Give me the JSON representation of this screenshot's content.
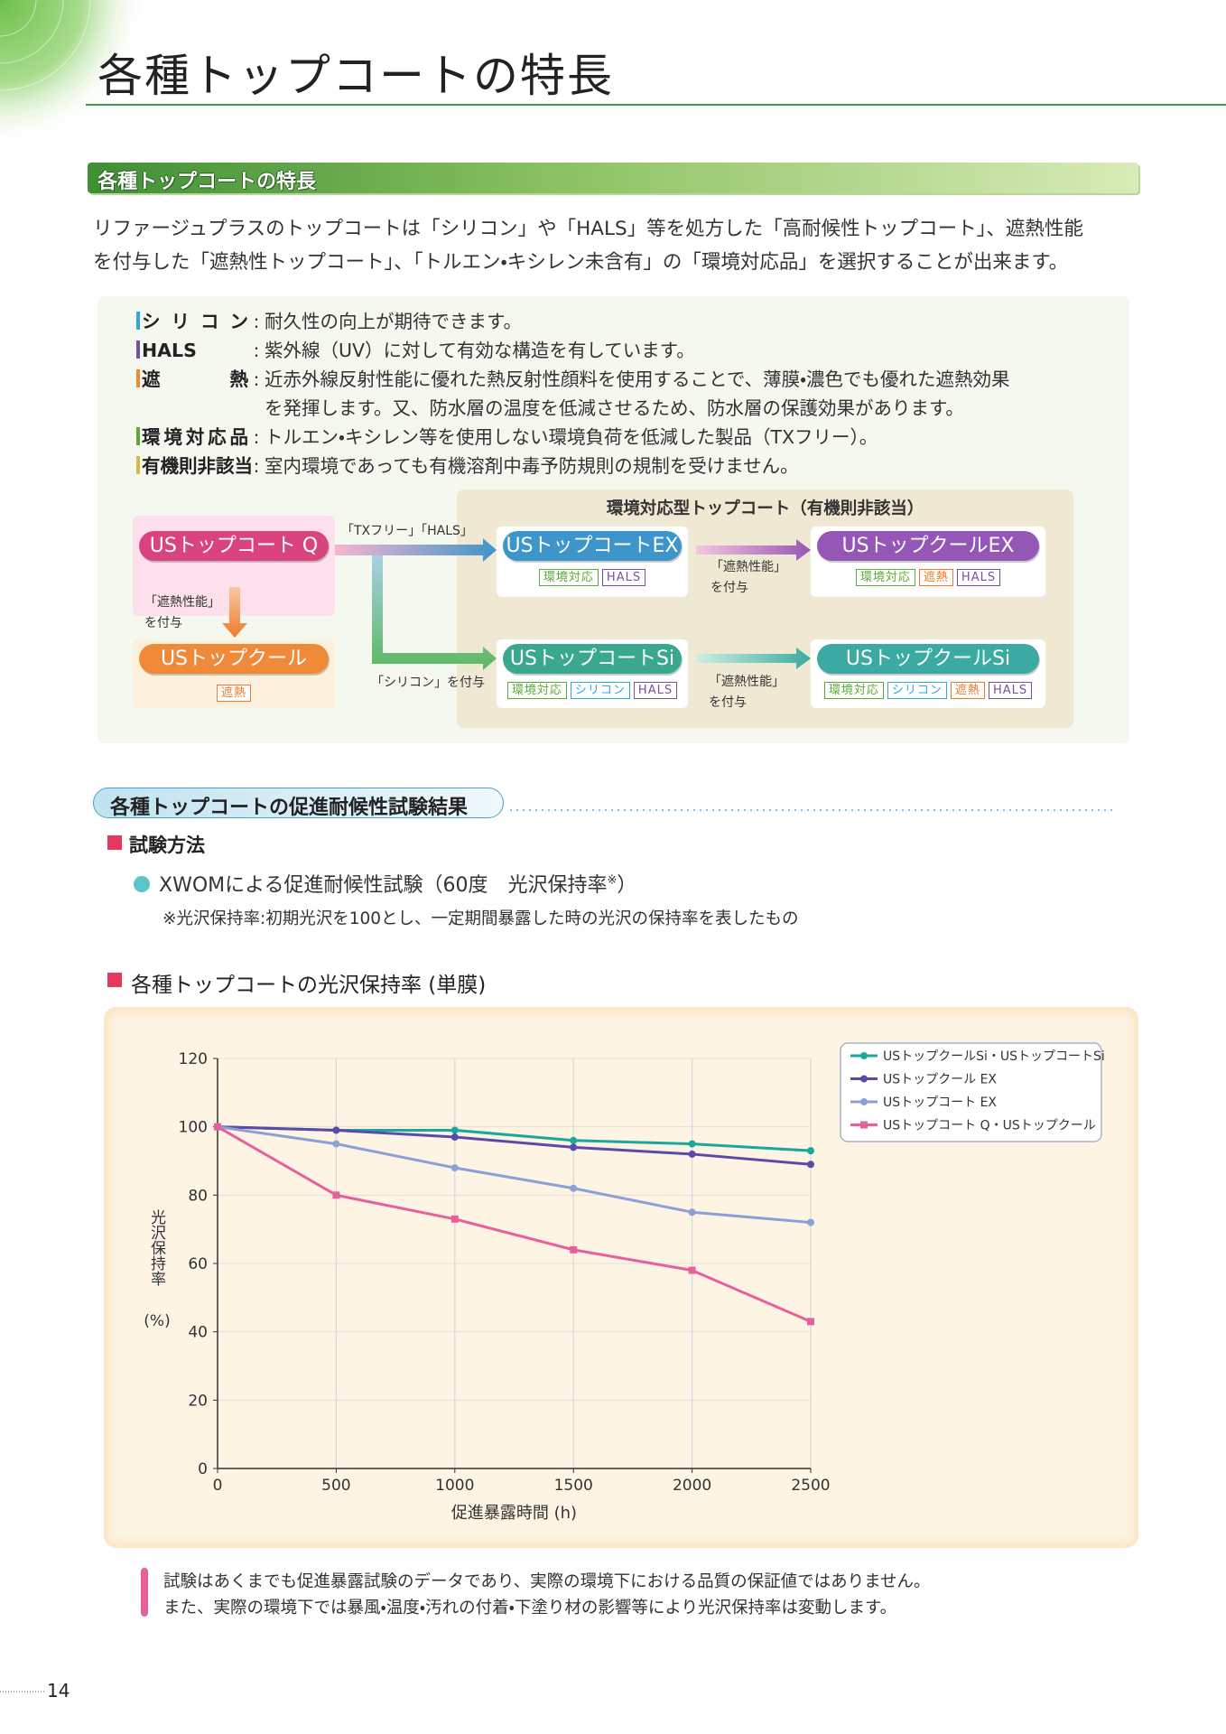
{
  "header": {
    "title": "各種トップコートの特長"
  },
  "section1": {
    "heading": "各種トップコートの特長",
    "intro": [
      "リファージュプラスのトップコートは「シリコン」や「HALS」等を処方した「高耐候性トップコート」、遮熱性能",
      "を付与した「遮熱性トップコート」、「トルエン・キシレン未含有」の「環境対応品」を選択することが出来ます。"
    ],
    "separator": ":",
    "features": [
      {
        "term": "シリコン",
        "color": "#29a9e0",
        "desc": [
          "耐久性の向上が期待できます。"
        ]
      },
      {
        "term": "HALS",
        "color": "#7b4fa0",
        "desc": [
          "紫外線（UV）に対して有効な構造を有しています。"
        ]
      },
      {
        "term": "遮熱",
        "color": "#f08a24",
        "desc": [
          "近赤外線反射性能に優れた熱反射性顔料を使用することで、薄膜・濃色でも優れた遮熱効果",
          "を発揮します。又、防水層の温度を低減させるため、防水層の保護効果があります。"
        ]
      },
      {
        "term": "環境対応品",
        "color": "#5aa838",
        "desc": [
          "トルエン・キシレン等を使用しない環境負荷を低減した製品（TXフリー）。"
        ]
      },
      {
        "term": "有機則非該当",
        "color": "#d9b84a",
        "desc": [
          "室内環境であっても有機溶剤中毒予防規則の規制を受けません。"
        ]
      }
    ]
  },
  "diagram": {
    "group_label": "環境対応型トップコート（有機則非該当）",
    "nodes": [
      {
        "label": "USトップコート Q",
        "color": "#d9447f"
      },
      {
        "label": "USトップクール",
        "color": "#ee8a3a",
        "tags": [
          {
            "text": "遮熱",
            "color": "#ee7a2a"
          }
        ]
      },
      {
        "label": "USトップコートEX",
        "color": "#3d95c9",
        "tags": [
          {
            "text": "環境対応",
            "color": "#5aa838"
          },
          {
            "text": "HALS",
            "color": "#7b4fa0"
          }
        ]
      },
      {
        "label": "USトップクールEX",
        "color": "#9457b5",
        "tags": [
          {
            "text": "環境対応",
            "color": "#5aa838"
          },
          {
            "text": "遮熱",
            "color": "#ee7a2a"
          },
          {
            "text": "HALS",
            "color": "#7b4fa0"
          }
        ]
      },
      {
        "label": "USトップコートSi",
        "color": "#3aa88c",
        "tags": [
          {
            "text": "環境対応",
            "color": "#5aa838"
          },
          {
            "text": "シリコン",
            "color": "#29a9e0"
          },
          {
            "text": "HALS",
            "color": "#7b4fa0"
          }
        ]
      },
      {
        "label": "USトップクールSi",
        "color": "#3aaaa2",
        "tags": [
          {
            "text": "環境対応",
            "color": "#5aa838"
          },
          {
            "text": "シリコン",
            "color": "#29a9e0"
          },
          {
            "text": "遮熱",
            "color": "#ee7a2a"
          },
          {
            "text": "HALS",
            "color": "#7b4fa0"
          }
        ]
      }
    ],
    "edges": [
      {
        "label": [
          "「TXフリー」「HALS」"
        ]
      },
      {
        "label": [
          "「シリコン」を付与"
        ]
      },
      {
        "label": [
          "「遮熱性能」",
          "を付与"
        ]
      },
      {
        "label": [
          "「遮熱性能」",
          "を付与"
        ]
      },
      {
        "label": [
          "「遮熱性能」",
          "を付与"
        ]
      }
    ]
  },
  "section2": {
    "heading": "各種トップコートの促進耐候性試験結果",
    "method_label": "試験方法",
    "method": {
      "text": "XWOMによる促進耐候性試験（60度　光沢保持率",
      "sup": "※",
      "close": "）"
    },
    "note": "※光沢保持率:初期光沢を100とし、一定期間暴露した時の光沢の保持率を表したもの"
  },
  "chart_data": {
    "type": "line",
    "title": "各種トップコートの光沢保持率 (単膜)",
    "y_label": "光沢保持率",
    "y_unit": "(%)",
    "x_label": "促進暴露時間 (h)",
    "x": [
      0,
      500,
      1000,
      1500,
      2000,
      2500
    ],
    "xlim": [
      0,
      2500
    ],
    "xticks": [
      0,
      500,
      1000,
      1500,
      2000,
      2500
    ],
    "ylim": [
      0,
      120
    ],
    "yticks": [
      0,
      20,
      40,
      60,
      80,
      100,
      120
    ],
    "grid": true,
    "legend": "upper right",
    "series": [
      {
        "name": "USトップクールSi・USトップコートSi",
        "color": "#1aa89b",
        "marker": "circle",
        "values": [
          100,
          99,
          99,
          96,
          95,
          93
        ]
      },
      {
        "name": "USトップクール EX",
        "color": "#5b4aa8",
        "marker": "circle",
        "values": [
          100,
          99,
          97,
          94,
          92,
          89
        ]
      },
      {
        "name": "USトップコート EX",
        "color": "#8c9fd6",
        "marker": "circle",
        "values": [
          100,
          95,
          88,
          82,
          75,
          72
        ]
      },
      {
        "name": "USトップコート Q・USトップクール",
        "color": "#e8609a",
        "marker": "square",
        "values": [
          100,
          80,
          73,
          64,
          58,
          43
        ]
      }
    ]
  },
  "footer": {
    "disclaimer": [
      "試験はあくまでも促進暴露試験のデータであり、実際の環境下における品質の保証値ではありません。",
      "また、実際の環境下では暴風・温度・汚れの付着・下塗り材の影響等により光沢保持率は変動します。"
    ],
    "page_number": "14"
  }
}
